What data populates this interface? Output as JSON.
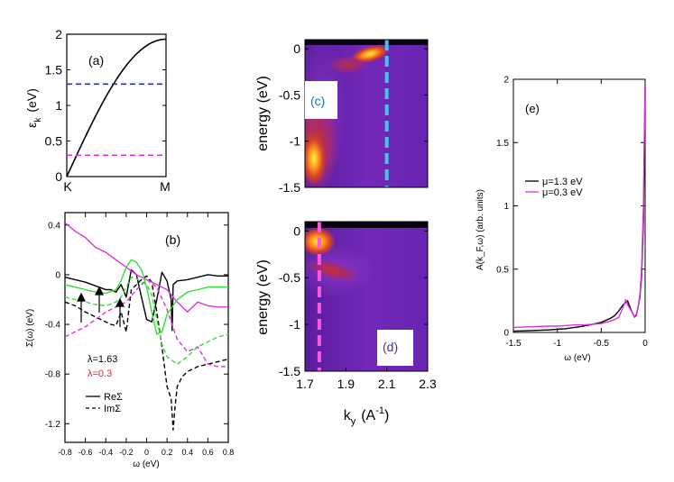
{
  "chart_data": [
    {
      "id": "a",
      "type": "line",
      "panel_label": "(a)",
      "ylabel_main": "ε",
      "ylabel_sub": "k",
      "ylabel_unit": "(eV)",
      "xlim": [
        0,
        1
      ],
      "ylim": [
        0,
        2
      ],
      "x_tick_labels": [
        "K",
        "M"
      ],
      "y_ticks": [
        0,
        0.5,
        1,
        1.5,
        2
      ],
      "y_tick_labels": [
        "0",
        "0.5",
        "1",
        "1.5",
        "2"
      ],
      "series": [
        {
          "name": "dispersion",
          "style": "solid",
          "color": "#000000",
          "formula": "2*sin(pi*x/2)"
        },
        {
          "name": "μ=1.3 eV",
          "style": "dashed",
          "color": "#1f2fe0",
          "y": 1.3
        },
        {
          "name": "μ=0.3 eV",
          "style": "dashed",
          "color": "#e02fe0",
          "y": 0.3
        }
      ]
    },
    {
      "id": "b",
      "type": "line",
      "panel_label": "(b)",
      "xlabel": "ω (eV)",
      "ylabel": "Σ(ω) (eV)",
      "xlim": [
        -0.8,
        0.8
      ],
      "ylim": [
        -1.35,
        0.5
      ],
      "x_ticks": [
        -0.8,
        -0.6,
        -0.4,
        -0.2,
        0,
        0.2,
        0.4,
        0.6,
        0.8
      ],
      "x_tick_labels": [
        "-0.8",
        "-0.6",
        "-0.4",
        "-0.2",
        "0",
        "0.2",
        "0.4",
        "0.6",
        "0.8"
      ],
      "y_ticks": [
        0.4,
        0,
        -0.4,
        -0.8,
        -1.2
      ],
      "y_tick_labels": [
        "0.4",
        "0",
        "-0.4",
        "-0.8",
        "-1.2"
      ],
      "annotations": [
        "λ=1.63",
        "λ=0.3"
      ],
      "legend": [
        "ReΣ",
        "ImΣ"
      ],
      "series": [
        {
          "name": "ReΣ λ=1.63",
          "color": "#000000",
          "style": "solid",
          "x": [
            -0.8,
            -0.7,
            -0.6,
            -0.5,
            -0.4,
            -0.35,
            -0.3,
            -0.25,
            -0.2,
            -0.15,
            -0.1,
            -0.05,
            0,
            0.05,
            0.1,
            0.15,
            0.2,
            0.24,
            0.25,
            0.26,
            0.3,
            0.4,
            0.5,
            0.6,
            0.7,
            0.8
          ],
          "y": [
            -0.02,
            -0.04,
            -0.06,
            -0.09,
            -0.12,
            -0.12,
            -0.14,
            -0.08,
            -0.18,
            0.04,
            0.0,
            -0.18,
            -0.36,
            -0.38,
            -0.2,
            0.02,
            -0.05,
            -0.2,
            -0.45,
            -0.08,
            -0.05,
            -0.04,
            -0.02,
            0.0,
            -0.01,
            -0.01
          ]
        },
        {
          "name": "ImΣ λ=1.63",
          "color": "#000000",
          "style": "dashed",
          "x": [
            -0.8,
            -0.7,
            -0.6,
            -0.5,
            -0.4,
            -0.35,
            -0.3,
            -0.25,
            -0.2,
            -0.15,
            -0.1,
            -0.05,
            0,
            0.05,
            0.1,
            0.15,
            0.2,
            0.24,
            0.26,
            0.28,
            0.3,
            0.35,
            0.4,
            0.5,
            0.6,
            0.7,
            0.8
          ],
          "y": [
            -0.22,
            -0.25,
            -0.3,
            -0.34,
            -0.38,
            -0.4,
            -0.41,
            -0.3,
            -0.46,
            -0.12,
            -0.08,
            -0.04,
            -0.01,
            -0.06,
            -0.3,
            -0.58,
            -0.9,
            -1.0,
            -1.25,
            -1.05,
            -0.9,
            -0.82,
            -0.78,
            -0.74,
            -0.72,
            -0.7,
            -0.68
          ]
        },
        {
          "name": "ReΣ λ=0.3 (magenta)",
          "color": "#e02fe0",
          "style": "solid",
          "x": [
            -0.8,
            -0.7,
            -0.6,
            -0.5,
            -0.4,
            -0.3,
            -0.2,
            -0.1,
            0,
            0.1,
            0.2,
            0.3,
            0.4,
            0.5,
            0.6,
            0.7,
            0.8
          ],
          "y": [
            0.42,
            0.35,
            0.3,
            0.22,
            0.18,
            0.12,
            0.06,
            0.0,
            -0.04,
            -0.08,
            -0.12,
            -0.22,
            -0.3,
            -0.22,
            -0.25,
            -0.26,
            -0.26
          ]
        },
        {
          "name": "ImΣ λ=0.3 (magenta)",
          "color": "#e02fe0",
          "style": "dashed",
          "x": [
            -0.8,
            -0.7,
            -0.6,
            -0.5,
            -0.4,
            -0.3,
            -0.2,
            -0.1,
            0,
            0.1,
            0.2,
            0.3,
            0.4,
            0.5,
            0.6,
            0.7,
            0.8
          ],
          "y": [
            -0.5,
            -0.46,
            -0.42,
            -0.36,
            -0.3,
            -0.26,
            -0.22,
            -0.12,
            -0.04,
            -0.1,
            -0.28,
            -0.52,
            -0.62,
            -0.58,
            -0.72,
            -0.74,
            -0.74
          ]
        },
        {
          "name": "ReΣ (green)",
          "color": "#33dd33",
          "style": "solid",
          "x": [
            -0.8,
            -0.7,
            -0.6,
            -0.5,
            -0.4,
            -0.3,
            -0.25,
            -0.2,
            -0.15,
            -0.1,
            -0.05,
            0,
            0.05,
            0.1,
            0.15,
            0.2,
            0.3,
            0.4,
            0.5,
            0.6,
            0.7,
            0.8
          ],
          "y": [
            -0.08,
            -0.1,
            -0.12,
            -0.14,
            -0.15,
            -0.12,
            -0.05,
            0.06,
            0.12,
            0.1,
            0.04,
            -0.1,
            -0.3,
            -0.48,
            -0.46,
            -0.32,
            -0.2,
            -0.14,
            -0.12,
            -0.1,
            -0.1,
            -0.1
          ]
        },
        {
          "name": "ImΣ (green)",
          "color": "#33dd33",
          "style": "dashed",
          "x": [
            -0.8,
            -0.7,
            -0.6,
            -0.5,
            -0.4,
            -0.3,
            -0.25,
            -0.2,
            -0.15,
            -0.1,
            -0.05,
            0,
            0.05,
            0.1,
            0.15,
            0.2,
            0.3,
            0.4,
            0.5,
            0.6,
            0.7,
            0.8
          ],
          "y": [
            -0.18,
            -0.2,
            -0.22,
            -0.24,
            -0.25,
            -0.22,
            -0.18,
            -0.1,
            -0.02,
            -0.03,
            -0.06,
            -0.08,
            -0.16,
            -0.36,
            -0.56,
            -0.66,
            -0.72,
            -0.66,
            -0.58,
            -0.54,
            -0.5,
            -0.48
          ]
        }
      ]
    },
    {
      "id": "c",
      "type": "heatmap",
      "panel_label": "(c)",
      "ylabel": "energy (eV)",
      "xlim": [
        1.7,
        2.3
      ],
      "ylim": [
        -1.5,
        0.1
      ],
      "y_ticks": [
        0,
        -0.5,
        -1,
        -1.5
      ],
      "y_tick_labels": [
        "0",
        "-0.5",
        "-1",
        "-1.5"
      ],
      "marker_k": 2.1,
      "marker_color": "#3fc7ea"
    },
    {
      "id": "d",
      "type": "heatmap",
      "panel_label": "(d)",
      "ylabel": "energy (eV)",
      "xlabel_main": "k",
      "xlabel_sub": "y",
      "xlabel_unit": "(A",
      "xlabel_exp": "-1",
      "xlabel_close": ")",
      "xlim": [
        1.7,
        2.3
      ],
      "ylim": [
        -1.5,
        0.1
      ],
      "x_ticks": [
        1.7,
        1.9,
        2.1,
        2.3
      ],
      "x_tick_labels": [
        "1.7",
        "1.9",
        "2.1",
        "2.3"
      ],
      "y_ticks": [
        0,
        -0.5,
        -1,
        -1.5
      ],
      "y_tick_labels": [
        "0",
        "-0.5",
        "-1",
        "-1.5"
      ],
      "marker_k": 1.77,
      "marker_color": "#ff55e0"
    },
    {
      "id": "e",
      "type": "line",
      "panel_label": "(e)",
      "xlabel": "ω (eV)",
      "ylabel": "A(k_F,ω) (arb. units)",
      "xlim": [
        -1.5,
        0
      ],
      "ylim": [
        0,
        2
      ],
      "x_ticks": [
        -1.5,
        -1,
        -0.5,
        0
      ],
      "x_tick_labels": [
        "-1.5",
        "-1",
        "-0.5",
        "0"
      ],
      "y_ticks": [
        0,
        0.5,
        1,
        1.5,
        2
      ],
      "y_tick_labels": [
        "0",
        "0.5",
        "1",
        "1.5",
        "2"
      ],
      "legend": [
        "μ=1.3 eV",
        "μ=0.3 eV"
      ],
      "series": [
        {
          "name": "μ=1.3 eV",
          "color": "#000000",
          "x": [
            -1.5,
            -1.3,
            -1.1,
            -1.0,
            -0.9,
            -0.8,
            -0.7,
            -0.6,
            -0.5,
            -0.4,
            -0.35,
            -0.3,
            -0.25,
            -0.2,
            -0.15,
            -0.12,
            -0.1,
            -0.08,
            -0.06,
            -0.04,
            -0.02,
            -0.01,
            0
          ],
          "y": [
            0.01,
            0.015,
            0.02,
            0.025,
            0.03,
            0.04,
            0.05,
            0.065,
            0.08,
            0.11,
            0.13,
            0.17,
            0.22,
            0.25,
            0.16,
            0.12,
            0.14,
            0.2,
            0.28,
            0.45,
            0.9,
            1.4,
            1.95
          ]
        },
        {
          "name": "μ=0.3 eV",
          "color": "#e02fe0",
          "x": [
            -1.5,
            -1.3,
            -1.1,
            -1.0,
            -0.9,
            -0.8,
            -0.7,
            -0.6,
            -0.5,
            -0.4,
            -0.35,
            -0.3,
            -0.25,
            -0.22,
            -0.2,
            -0.15,
            -0.12,
            -0.1,
            -0.08,
            -0.06,
            -0.04,
            -0.02,
            -0.01,
            0
          ],
          "y": [
            0.04,
            0.045,
            0.05,
            0.05,
            0.055,
            0.06,
            0.06,
            0.065,
            0.07,
            0.09,
            0.1,
            0.12,
            0.2,
            0.26,
            0.22,
            0.16,
            0.12,
            0.13,
            0.2,
            0.3,
            0.5,
            1.0,
            1.5,
            1.95
          ]
        }
      ]
    }
  ]
}
